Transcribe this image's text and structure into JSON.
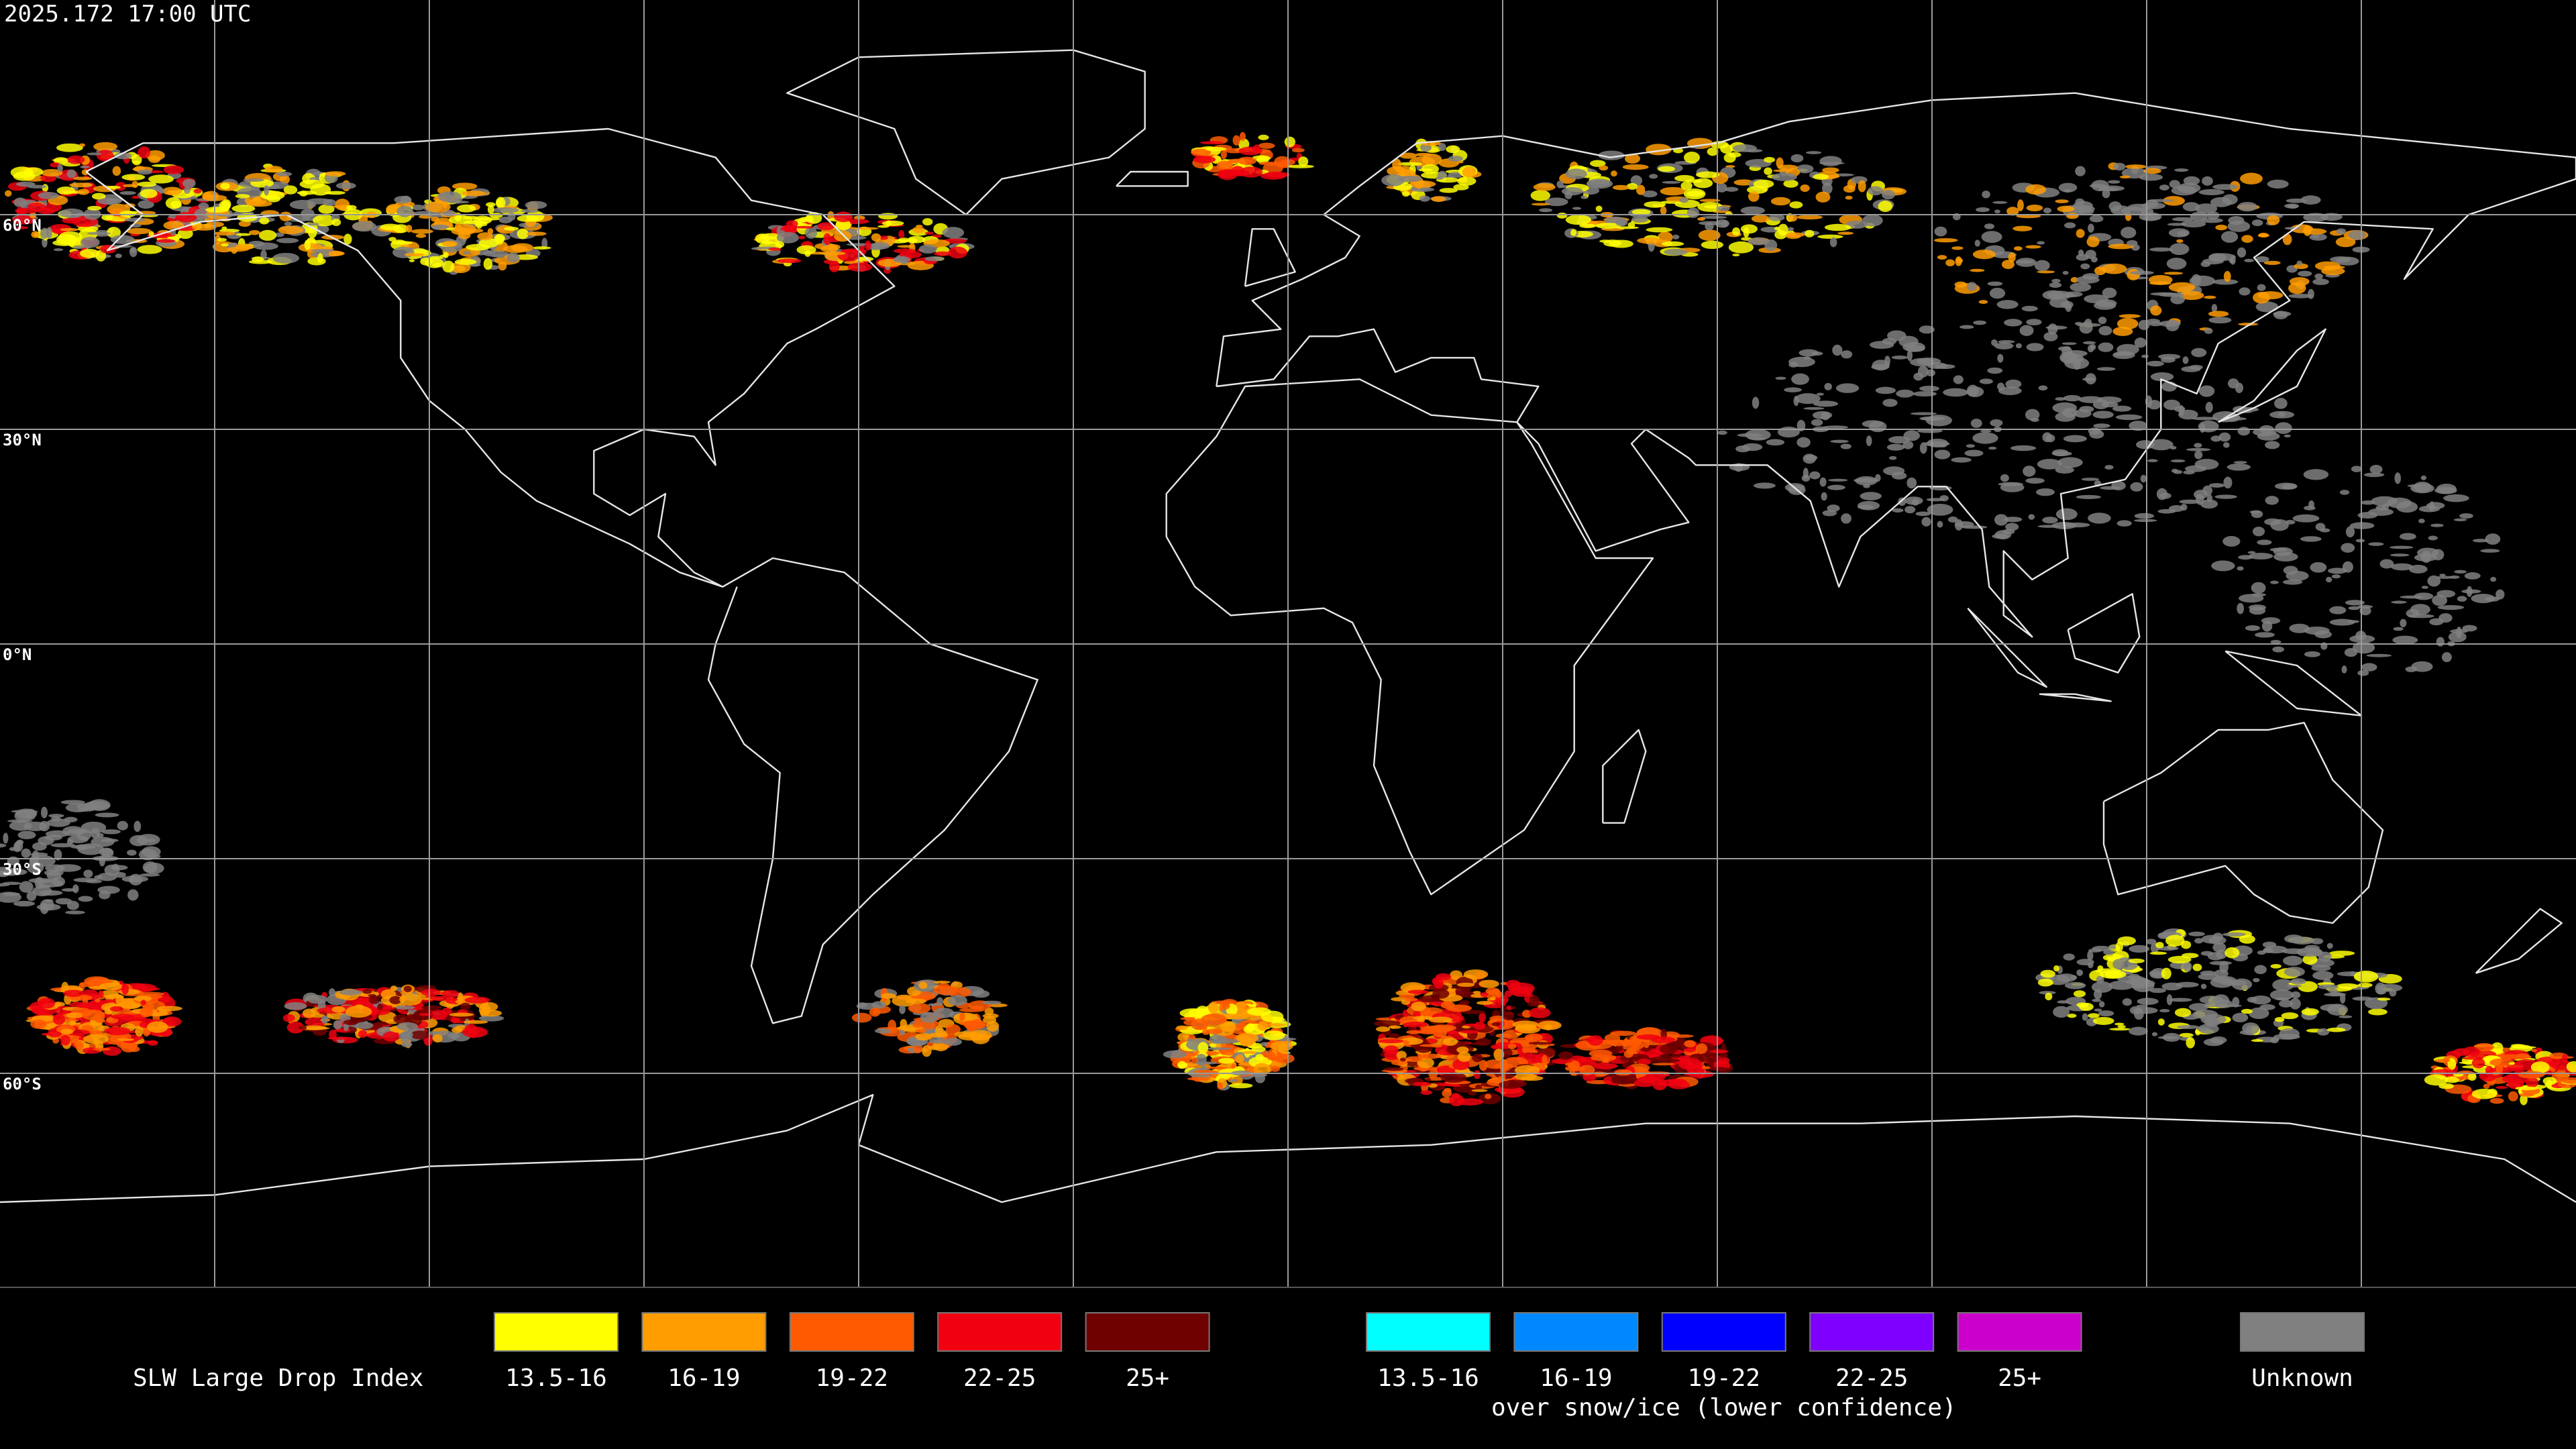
{
  "timestamp": "2025.172 17:00 UTC",
  "latitude_labels": [
    "60°N",
    "30°N",
    "0°N",
    "30°S",
    "60°S"
  ],
  "legend": {
    "title": "SLW Large Drop Index",
    "groups": [
      {
        "items": [
          {
            "label": "13.5-16",
            "color": "#ffff00"
          },
          {
            "label": "16-19",
            "color": "#ff9c00"
          },
          {
            "label": "19-22",
            "color": "#ff5a00"
          },
          {
            "label": "22-25",
            "color": "#f00010"
          },
          {
            "label": "25+",
            "color": "#6e0000"
          }
        ]
      },
      {
        "items": [
          {
            "label": "13.5-16",
            "color": "#00ffff"
          },
          {
            "label": "16-19",
            "color": "#0088ff"
          },
          {
            "label": "19-22",
            "color": "#0000ff"
          },
          {
            "label": "22-25",
            "color": "#8000ff"
          },
          {
            "label": "25+",
            "color": "#cc00cc"
          }
        ],
        "caption": "over snow/ice (lower confidence)"
      },
      {
        "items": [
          {
            "label": "Unknown",
            "color": "#808080"
          }
        ]
      }
    ]
  }
}
